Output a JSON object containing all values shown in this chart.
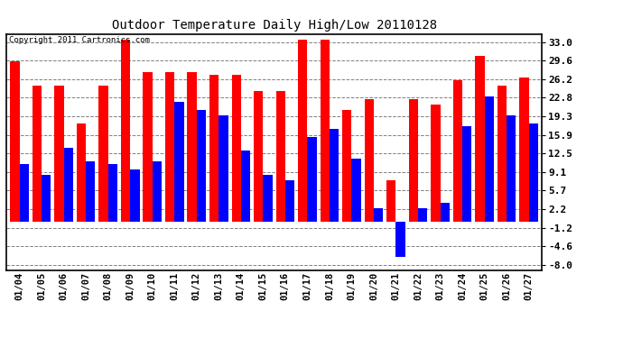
{
  "title": "Outdoor Temperature Daily High/Low 20110128",
  "copyright": "Copyright 2011 Cartronics.com",
  "dates": [
    "01/04",
    "01/05",
    "01/06",
    "01/07",
    "01/08",
    "01/09",
    "01/10",
    "01/11",
    "01/12",
    "01/13",
    "01/14",
    "01/15",
    "01/16",
    "01/17",
    "01/18",
    "01/19",
    "01/20",
    "01/21",
    "01/22",
    "01/23",
    "01/24",
    "01/25",
    "01/26",
    "01/27"
  ],
  "highs": [
    29.5,
    25.0,
    25.0,
    18.0,
    25.0,
    33.5,
    27.5,
    27.5,
    27.5,
    27.0,
    27.0,
    24.0,
    24.0,
    33.5,
    33.5,
    20.5,
    22.5,
    7.5,
    22.5,
    21.5,
    26.0,
    30.5,
    25.0,
    26.5
  ],
  "lows": [
    10.5,
    8.5,
    13.5,
    11.0,
    10.5,
    9.5,
    11.0,
    22.0,
    20.5,
    19.5,
    13.0,
    8.5,
    7.5,
    15.5,
    17.0,
    11.5,
    2.5,
    -6.5,
    2.5,
    3.5,
    17.5,
    23.0,
    19.5,
    18.0
  ],
  "high_color": "#ff0000",
  "low_color": "#0000ff",
  "bg_color": "#ffffff",
  "plot_bg": "#ffffff",
  "grid_color": "#808080",
  "yticks": [
    33.0,
    29.6,
    26.2,
    22.8,
    19.3,
    15.9,
    12.5,
    9.1,
    5.7,
    2.2,
    -1.2,
    -4.6,
    -8.0
  ],
  "ylim": [
    -9.0,
    34.5
  ],
  "bar_width": 0.42
}
